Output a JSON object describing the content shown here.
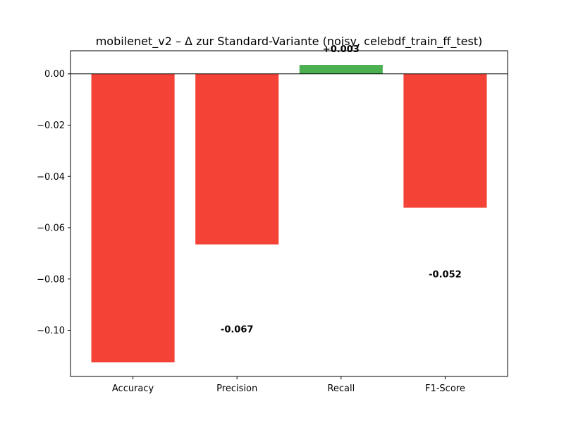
{
  "chart_data": {
    "type": "bar",
    "title": "mobilenet_v2 – Δ zur Standard-Variante (noisy, celebdf_train_ff_test)",
    "xlabel": "",
    "ylabel": "",
    "categories": [
      "Accuracy",
      "Precision",
      "Recall",
      "F1-Score"
    ],
    "values": [
      -0.1125,
      -0.0665,
      0.0035,
      -0.0522
    ],
    "data_labels": [
      "",
      "-0.067",
      "+0.003",
      "-0.052"
    ],
    "ylim": [
      -0.118,
      0.009
    ],
    "yticks": [
      0.0,
      -0.02,
      -0.04,
      -0.06,
      -0.08,
      -0.1
    ],
    "ytick_labels": [
      "0.00",
      "−0.02",
      "−0.04",
      "−0.06",
      "−0.08",
      "−0.10"
    ],
    "grid": false,
    "zero_line": true,
    "colors": {
      "negative": "#f44336",
      "positive": "#4caf50",
      "axis": "#000000"
    }
  }
}
